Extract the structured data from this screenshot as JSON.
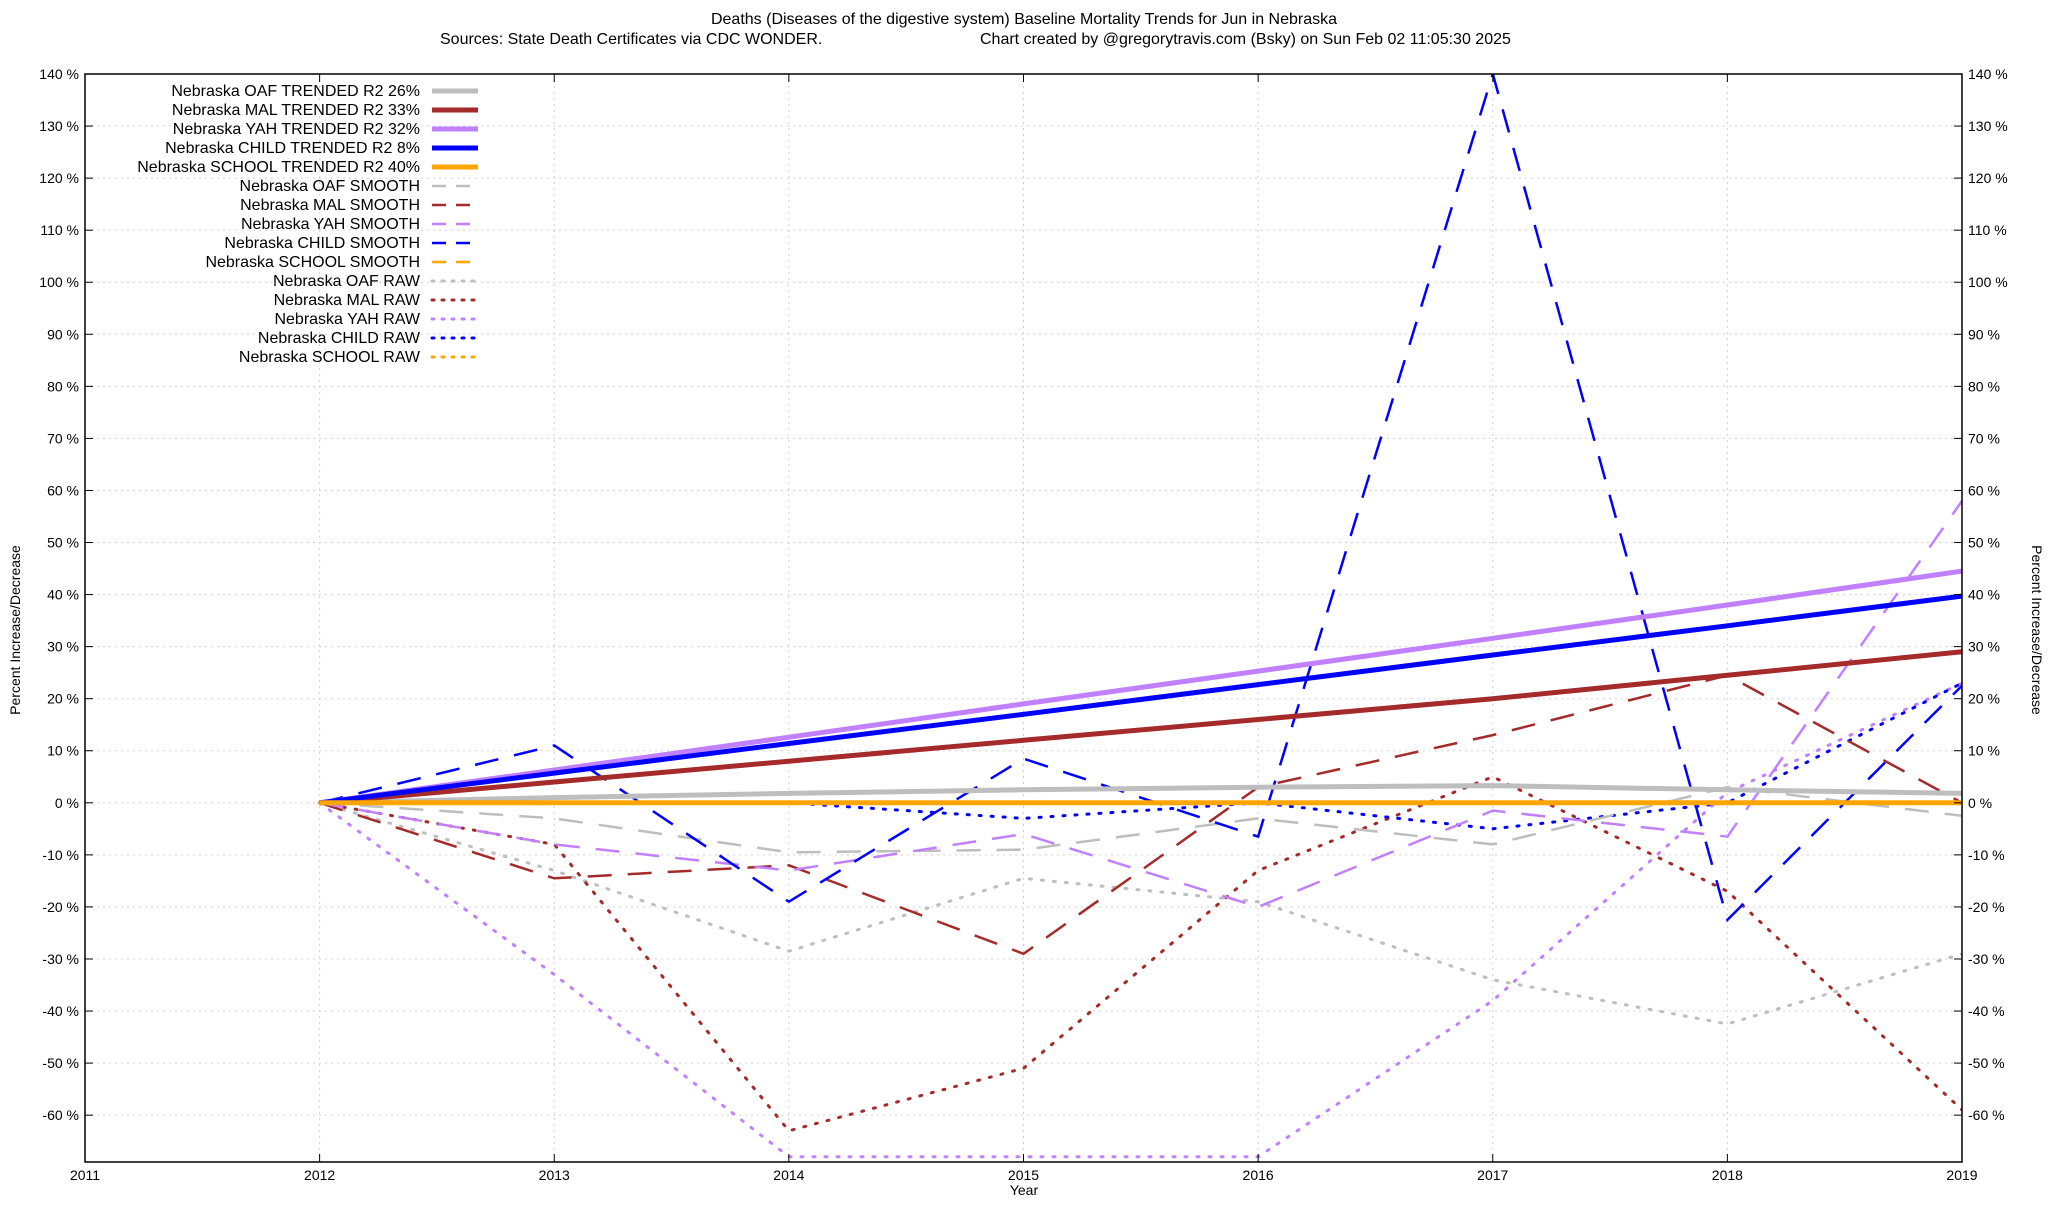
{
  "chart_data": {
    "type": "line",
    "title": "Deaths (Diseases of the digestive system)  Baseline Mortality Trends for Jun in Nebraska",
    "subtitle_left": "Sources: State Death Certificates via CDC WONDER.",
    "subtitle_right": "Chart created by @gregorytravis.com (Bsky) on Sun Feb 02 11:05:30 2025",
    "xlabel": "Year",
    "ylabel_left": "Percent Increase/Decrease",
    "ylabel_right": "Percent Increase/Decrease",
    "xlim": [
      2011,
      2019
    ],
    "ylim": [
      -69,
      140
    ],
    "x_ticks": [
      2011,
      2012,
      2013,
      2014,
      2015,
      2016,
      2017,
      2018,
      2019
    ],
    "x_tick_labels": [
      "2011",
      "2012",
      "2013",
      "2014",
      "2015",
      "2016",
      "2017",
      "2018",
      "2019"
    ],
    "y_ticks": [
      140,
      130,
      120,
      110,
      100,
      90,
      80,
      70,
      60,
      50,
      40,
      30,
      20,
      10,
      0,
      -10,
      -20,
      -30,
      -40,
      -50,
      -60
    ],
    "y_tick_labels": [
      "140 %",
      "130 %",
      "120 %",
      "110 %",
      "100 %",
      "90 %",
      "80 %",
      "70 %",
      "60 %",
      "50 %",
      "40 %",
      "30 %",
      "20 %",
      "10 %",
      "0 %",
      "-10 %",
      "-20 %",
      "-30 %",
      "-40 %",
      "-50 %",
      "-60 %"
    ],
    "grid": true,
    "legend_position": "top-left",
    "series": [
      {
        "name": "Nebraska OAF TRENDED R2  26%",
        "style": "trend",
        "color": "#bebebe",
        "x": [
          2012,
          2013,
          2014,
          2015,
          2016,
          2017,
          2018,
          2019
        ],
        "values": [
          0,
          1,
          1.8,
          2.5,
          3,
          3.3,
          2.5,
          1.8
        ]
      },
      {
        "name": "Nebraska MAL TRENDED R2  33%",
        "style": "trend",
        "color": "#a52a2a",
        "x": [
          2012,
          2013,
          2014,
          2015,
          2016,
          2017,
          2018,
          2019
        ],
        "values": [
          0,
          4,
          8,
          12,
          16,
          20,
          24.5,
          29
        ]
      },
      {
        "name": "Nebraska YAH TRENDED R2  32%",
        "style": "trend",
        "color": "#c080ff",
        "x": [
          2012,
          2013,
          2014,
          2015,
          2016,
          2017,
          2018,
          2019
        ],
        "values": [
          0,
          6.3,
          12.6,
          19,
          25.3,
          31.6,
          38,
          44.5
        ]
      },
      {
        "name": "Nebraska CHILD TRENDED R2  8%",
        "style": "trend",
        "color": "#0000ff",
        "x": [
          2012,
          2013,
          2014,
          2015,
          2016,
          2017,
          2018,
          2019
        ],
        "values": [
          0,
          5.7,
          11.4,
          17,
          22.7,
          28.4,
          34,
          39.7
        ]
      },
      {
        "name": "Nebraska SCHOOL TRENDED R2  40%",
        "style": "trend",
        "color": "#ffa500",
        "x": [
          2012,
          2013,
          2014,
          2015,
          2016,
          2017,
          2018,
          2019
        ],
        "values": [
          0,
          0,
          0,
          0,
          0,
          0,
          0,
          0
        ]
      },
      {
        "name": "Nebraska OAF SMOOTH",
        "style": "smooth",
        "color": "#bebebe",
        "x": [
          2012,
          2013,
          2014,
          2015,
          2016,
          2017,
          2018,
          2019
        ],
        "values": [
          0,
          -3,
          -9.5,
          -9,
          -3,
          -8,
          3,
          -2.5
        ]
      },
      {
        "name": "Nebraska MAL SMOOTH",
        "style": "smooth",
        "color": "#a52a2a",
        "x": [
          2012,
          2013,
          2014,
          2015,
          2016,
          2017,
          2018,
          2019
        ],
        "values": [
          0,
          -14.5,
          -12,
          -29,
          3,
          13,
          24.5,
          0
        ]
      },
      {
        "name": "Nebraska YAH SMOOTH",
        "style": "smooth",
        "color": "#c080ff",
        "x": [
          2012,
          2013,
          2014,
          2015,
          2016,
          2017,
          2018,
          2019
        ],
        "values": [
          0,
          -8,
          -13,
          -6,
          -20,
          -1.5,
          -6.5,
          58
        ]
      },
      {
        "name": "Nebraska CHILD SMOOTH",
        "style": "smooth",
        "color": "#0000ff",
        "x": [
          2012,
          2013,
          2014,
          2015,
          2016,
          2017,
          2018,
          2019
        ],
        "values": [
          0,
          11,
          -19,
          8.5,
          -6.5,
          140,
          -22.5,
          22.5
        ]
      },
      {
        "name": "Nebraska SCHOOL SMOOTH",
        "style": "smooth",
        "color": "#ffa500",
        "x": [
          2012,
          2013,
          2014,
          2015,
          2016,
          2017,
          2018,
          2019
        ],
        "values": [
          0,
          0,
          0,
          0,
          0,
          0,
          0,
          0
        ]
      },
      {
        "name": "Nebraska OAF RAW",
        "style": "raw",
        "color": "#bebebe",
        "x": [
          2012,
          2013,
          2014,
          2015,
          2016,
          2017,
          2018,
          2019
        ],
        "values": [
          0,
          -13,
          -28.5,
          -14.5,
          -19,
          -34,
          -42.5,
          -29
        ]
      },
      {
        "name": "Nebraska MAL RAW",
        "style": "raw",
        "color": "#a52a2a",
        "x": [
          2012,
          2013,
          2014,
          2015,
          2016,
          2017,
          2018,
          2019
        ],
        "values": [
          0,
          -8,
          -63,
          -51,
          -13,
          5,
          -17,
          -59
        ]
      },
      {
        "name": "Nebraska YAH RAW",
        "style": "raw",
        "color": "#c080ff",
        "x": [
          2012,
          2013,
          2014,
          2015,
          2016,
          2017,
          2018,
          2019
        ],
        "values": [
          0,
          -33,
          -68,
          -68,
          -68,
          -38,
          2,
          23
        ]
      },
      {
        "name": "Nebraska CHILD RAW",
        "style": "raw",
        "color": "#0000ff",
        "x": [
          2012,
          2013,
          2014,
          2015,
          2016,
          2017,
          2018,
          2019
        ],
        "values": [
          0,
          0,
          0,
          -3,
          0,
          -5,
          0,
          23
        ]
      },
      {
        "name": "Nebraska SCHOOL RAW",
        "style": "raw",
        "color": "#ffa500",
        "x": [
          2012,
          2013,
          2014,
          2015,
          2016,
          2017,
          2018,
          2019
        ],
        "values": [
          0,
          0,
          0,
          0,
          0,
          0,
          0,
          0
        ]
      }
    ]
  }
}
